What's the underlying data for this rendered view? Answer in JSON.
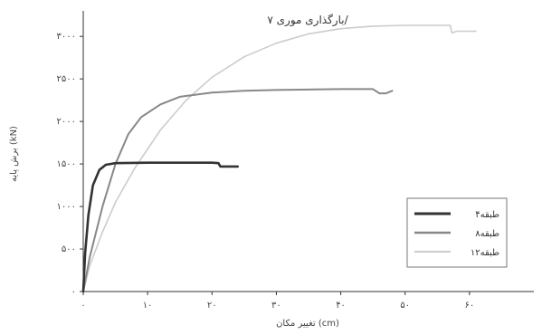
{
  "chart_data": {
    "type": "line",
    "title": "بارگذاری موری ۷/",
    "xlabel": "تغییر مکان (cm)",
    "ylabel": "برش پایه (kN)",
    "xlim": [
      0,
      70
    ],
    "ylim": [
      0,
      3300
    ],
    "x_ticks": [
      0,
      10,
      20,
      30,
      40,
      50,
      60
    ],
    "x_tick_labels": [
      "۰",
      "۱۰",
      "۲۰",
      "۳۰",
      "۴۰",
      "۵۰",
      "۶۰"
    ],
    "y_ticks": [
      0,
      500,
      1000,
      1500,
      2000,
      2500,
      3000
    ],
    "y_tick_labels": [
      "۰",
      "۵۰۰",
      "۱۰۰۰",
      "۱۵۰۰",
      "۲۰۰۰",
      "۲۵۰۰",
      "۳۰۰۰"
    ],
    "legend_position": "bottom-right",
    "series": [
      {
        "name": "۴طبقه",
        "color": "#333333",
        "stroke": 2.6,
        "points": [
          [
            0,
            0
          ],
          [
            0.3,
            450
          ],
          [
            0.8,
            900
          ],
          [
            1.5,
            1250
          ],
          [
            2.5,
            1430
          ],
          [
            3.5,
            1490
          ],
          [
            5,
            1510
          ],
          [
            10,
            1515
          ],
          [
            15,
            1515
          ],
          [
            20,
            1515
          ],
          [
            21,
            1510
          ],
          [
            21.3,
            1470
          ],
          [
            22.5,
            1470
          ],
          [
            24,
            1470
          ]
        ]
      },
      {
        "name": "۸طبقه",
        "color": "#888888",
        "stroke": 2.0,
        "points": [
          [
            0,
            0
          ],
          [
            1,
            400
          ],
          [
            3,
            1000
          ],
          [
            5,
            1500
          ],
          [
            7,
            1850
          ],
          [
            9,
            2050
          ],
          [
            12,
            2200
          ],
          [
            15,
            2290
          ],
          [
            20,
            2340
          ],
          [
            25,
            2360
          ],
          [
            30,
            2370
          ],
          [
            40,
            2380
          ],
          [
            45,
            2380
          ],
          [
            46,
            2330
          ],
          [
            47,
            2330
          ],
          [
            48,
            2360
          ]
        ]
      },
      {
        "name": "۱۲طبقه",
        "color": "#cccccc",
        "stroke": 1.6,
        "points": [
          [
            0,
            0
          ],
          [
            1,
            300
          ],
          [
            3,
            700
          ],
          [
            5,
            1050
          ],
          [
            8,
            1450
          ],
          [
            12,
            1900
          ],
          [
            16,
            2250
          ],
          [
            20,
            2520
          ],
          [
            25,
            2760
          ],
          [
            30,
            2920
          ],
          [
            35,
            3030
          ],
          [
            40,
            3090
          ],
          [
            45,
            3120
          ],
          [
            50,
            3130
          ],
          [
            55,
            3130
          ],
          [
            57,
            3130
          ],
          [
            57.3,
            3040
          ],
          [
            58,
            3060
          ],
          [
            60,
            3060
          ],
          [
            61,
            3060
          ]
        ]
      }
    ]
  }
}
